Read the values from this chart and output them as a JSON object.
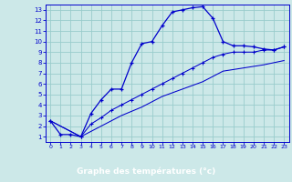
{
  "title": "Graphe des températures (°c)",
  "bg_color": "#cce8e8",
  "grid_color": "#99cccc",
  "line_color": "#0000cc",
  "label_bg": "#2244aa",
  "xlim_min": -0.5,
  "xlim_max": 23.5,
  "ylim_min": 0.5,
  "ylim_max": 13.5,
  "xticks": [
    0,
    1,
    2,
    3,
    4,
    5,
    6,
    7,
    8,
    9,
    10,
    11,
    12,
    13,
    14,
    15,
    16,
    17,
    18,
    19,
    20,
    21,
    22,
    23
  ],
  "yticks": [
    1,
    2,
    3,
    4,
    5,
    6,
    7,
    8,
    9,
    10,
    11,
    12,
    13
  ],
  "curve1_x": [
    0,
    1,
    2,
    3,
    4,
    5,
    6,
    7,
    8,
    9,
    10,
    11,
    12,
    13,
    14,
    15,
    16,
    17,
    18,
    19,
    20,
    21,
    22,
    23
  ],
  "curve1_y": [
    2.5,
    1.2,
    1.2,
    1.0,
    3.2,
    4.5,
    5.5,
    5.5,
    8.0,
    9.8,
    10.0,
    11.5,
    12.8,
    13.0,
    13.2,
    13.3,
    12.2,
    10.0,
    9.6,
    9.6,
    9.5,
    9.3,
    9.2,
    9.5
  ],
  "curve2_x": [
    0,
    3,
    4,
    5,
    6,
    7,
    8,
    9,
    10,
    11,
    12,
    13,
    14,
    15,
    16,
    17,
    18,
    19,
    20,
    21,
    22,
    23
  ],
  "curve2_y": [
    2.5,
    1.0,
    2.2,
    2.8,
    3.5,
    4.0,
    4.5,
    5.0,
    5.5,
    6.0,
    6.5,
    7.0,
    7.5,
    8.0,
    8.5,
    8.8,
    9.0,
    9.0,
    9.0,
    9.2,
    9.2,
    9.5
  ],
  "curve3_x": [
    0,
    3,
    5,
    7,
    9,
    11,
    13,
    15,
    17,
    19,
    21,
    23
  ],
  "curve3_y": [
    2.5,
    1.0,
    2.0,
    3.0,
    3.8,
    4.8,
    5.5,
    6.2,
    7.2,
    7.5,
    7.8,
    8.2
  ]
}
